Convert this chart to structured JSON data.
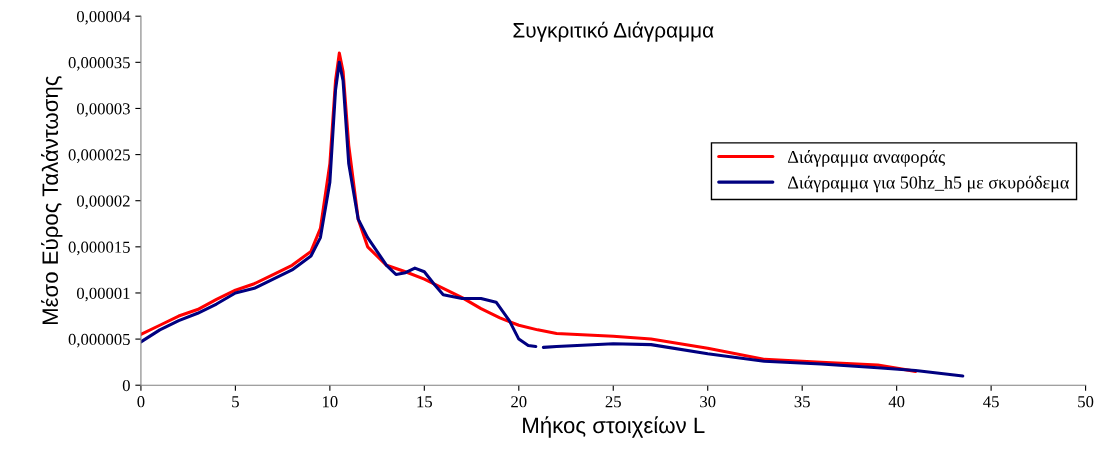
{
  "chart_data": {
    "type": "line",
    "title": "Συγκριτικό Διάγραμμα",
    "xlabel": "Μήκος στοιχείων L",
    "ylabel": "Μέσο Εύρος Ταλάντωσης",
    "xlim": [
      0,
      50
    ],
    "xticks": [
      0,
      5,
      10,
      15,
      20,
      25,
      30,
      35,
      40,
      45,
      50
    ],
    "ylim": [
      0,
      4e-05
    ],
    "yticks": [
      0,
      {
        "value": 5e-06,
        "label": "0,000005"
      },
      {
        "value": 1e-05,
        "label": "0,00001"
      },
      {
        "value": 1.5e-05,
        "label": "0,000015"
      },
      {
        "value": 2e-05,
        "label": "0,00002"
      },
      {
        "value": 2.5e-05,
        "label": "0,000025"
      },
      {
        "value": 3e-05,
        "label": "0,00003"
      },
      {
        "value": 3.5e-05,
        "label": "0,000035"
      },
      {
        "value": 4e-05,
        "label": "0,00004"
      }
    ],
    "grid": false,
    "legend": "right",
    "marker": "none",
    "line_style": "solid",
    "series": [
      {
        "name": "Διάγραμμα αναφοράς",
        "color": "#ff0000",
        "x": [
          0,
          1,
          2,
          3,
          4,
          5,
          6,
          7,
          8,
          9,
          9.5,
          10,
          10.3,
          10.5,
          10.7,
          11,
          11.5,
          12,
          13,
          14,
          15,
          16,
          17,
          18,
          19,
          20,
          21,
          22,
          25,
          27,
          30,
          33,
          36,
          39,
          41
        ],
        "values": [
          5.5e-06,
          6.5e-06,
          7.5e-06,
          8.2e-06,
          9.3e-06,
          1.03e-05,
          1.1e-05,
          1.2e-05,
          1.3e-05,
          1.45e-05,
          1.7e-05,
          2.4e-05,
          3.3e-05,
          3.6e-05,
          3.4e-05,
          2.6e-05,
          1.8e-05,
          1.5e-05,
          1.3e-05,
          1.23e-05,
          1.15e-05,
          1.05e-05,
          9.5e-06,
          8.3e-06,
          7.3e-06,
          6.5e-06,
          6e-06,
          5.6e-06,
          5.3e-06,
          5e-06,
          4e-06,
          2.8e-06,
          2.5e-06,
          2.2e-06,
          1.5e-06
        ]
      },
      {
        "name": "Διάγραμμα για 50hz_h5 με σκυρόδεμα",
        "color": "#000080",
        "x": [
          0,
          1,
          2,
          3,
          4,
          5,
          6,
          7,
          8,
          9,
          9.5,
          10,
          10.3,
          10.5,
          10.7,
          11,
          11.5,
          12,
          13,
          13.5,
          14,
          14.5,
          15,
          15.5,
          16,
          17,
          18,
          18.8,
          19.5,
          20,
          20.5,
          20.9,
          21.1,
          21.3,
          22,
          25,
          27,
          30,
          33,
          36,
          39,
          41,
          43.5
        ],
        "values": [
          4.7e-06,
          6e-06,
          7e-06,
          7.8e-06,
          8.8e-06,
          1e-05,
          1.05e-05,
          1.15e-05,
          1.25e-05,
          1.4e-05,
          1.6e-05,
          2.2e-05,
          3.2e-05,
          3.5e-05,
          3.3e-05,
          2.4e-05,
          1.8e-05,
          1.6e-05,
          1.3e-05,
          1.2e-05,
          1.22e-05,
          1.27e-05,
          1.23e-05,
          1.1e-05,
          9.8e-06,
          9.4e-06,
          9.4e-06,
          9e-06,
          7e-06,
          5e-06,
          4.3e-06,
          4.2e-06,
          null,
          4.1e-06,
          4.2e-06,
          4.5e-06,
          4.4e-06,
          3.4e-06,
          2.6e-06,
          2.3e-06,
          1.9e-06,
          1.6e-06,
          1e-06
        ]
      }
    ]
  }
}
